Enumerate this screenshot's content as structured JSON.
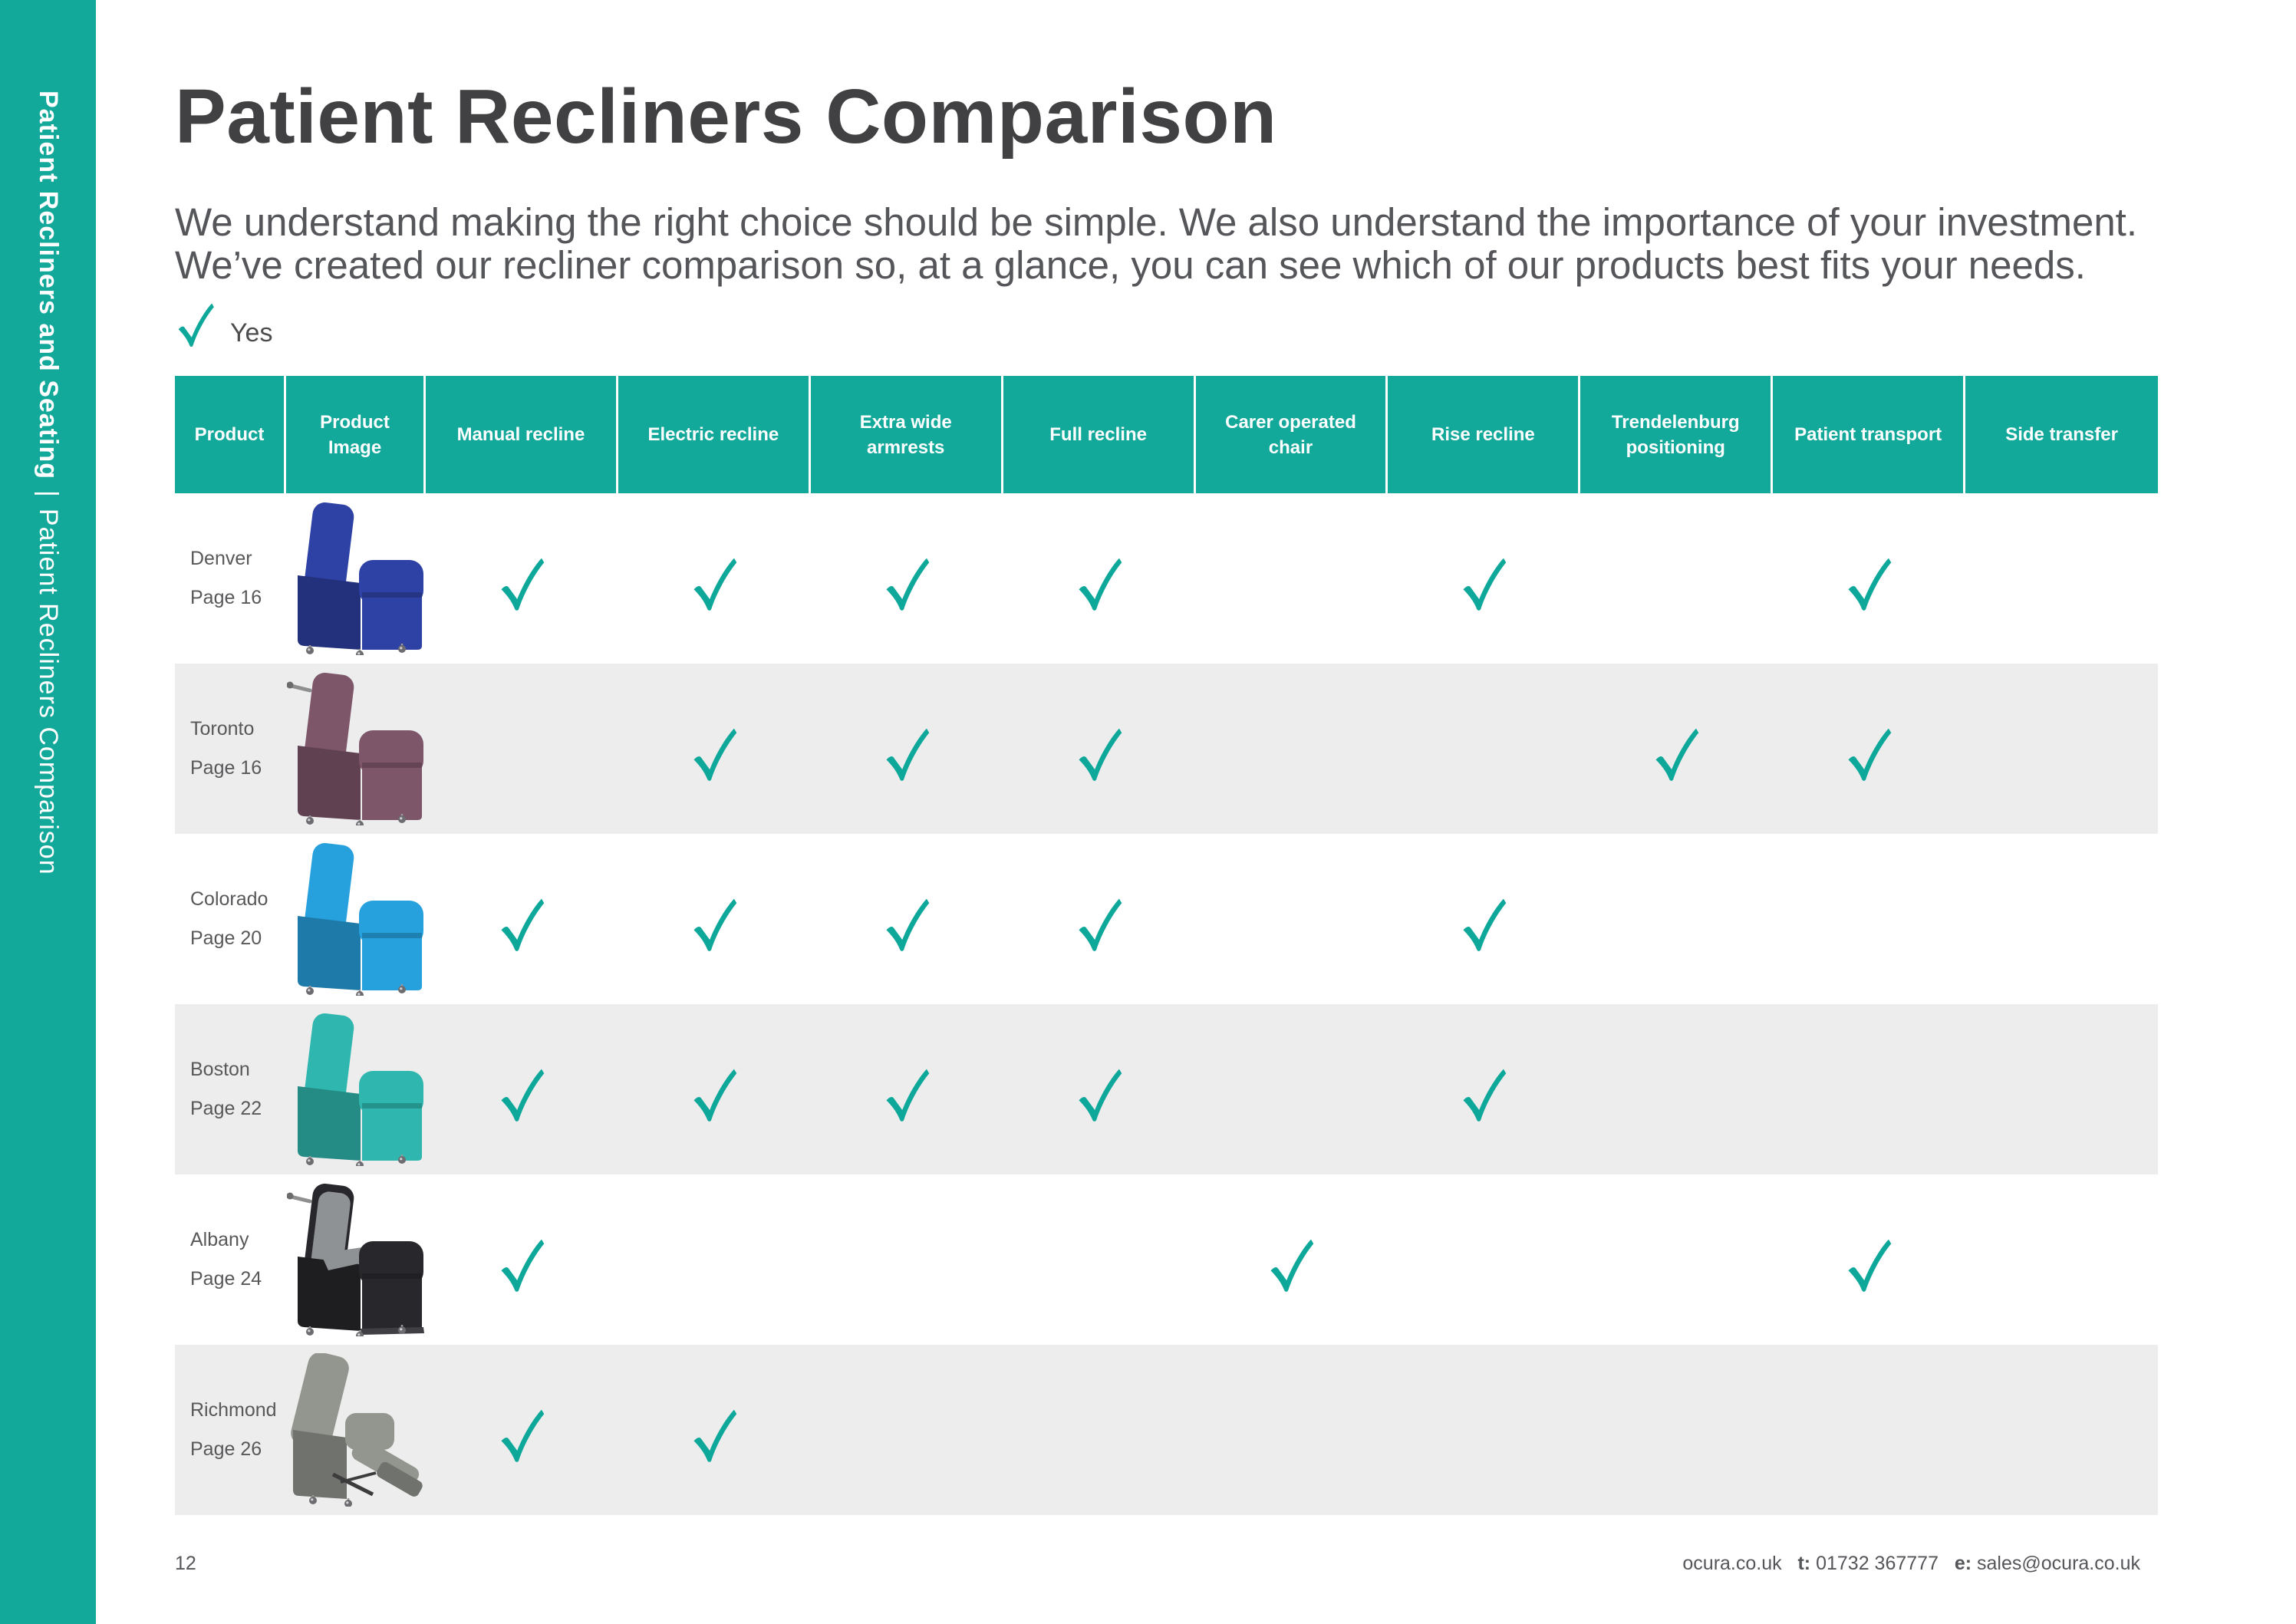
{
  "colors": {
    "teal": "#12a89a",
    "row_alt": "#ededed",
    "title_text": "#414042",
    "body_text": "#55565a",
    "table_text": "#58585a",
    "check": "#0ea89b"
  },
  "sidebar": {
    "bold": "Patient Recliners and Seating",
    "divider": "|",
    "regular": "Patient Recliners Comparison"
  },
  "header": {
    "title": "Patient Recliners Comparison",
    "intro_line1": "We understand making the right choice should be simple. We also understand the importance of your investment.",
    "intro_line2": "We’ve created our recliner comparison so, at a glance, you can see which of our products best fits your needs."
  },
  "legend": {
    "label": "Yes"
  },
  "table": {
    "columns": [
      "Product",
      "Product Image",
      "Manual recline",
      "Electric recline",
      "Extra wide armrests",
      "Full recline",
      "Carer operated chair",
      "Rise recline",
      "Trendelenburg positioning",
      "Patient transport",
      "Side transfer"
    ],
    "rows": [
      {
        "product": "Denver",
        "page": "Page 16",
        "chair": {
          "color": "#2e41a4",
          "style": "upright"
        },
        "features": {
          "Manual recline": true,
          "Electric recline": true,
          "Extra wide armrests": true,
          "Full recline": true,
          "Carer operated chair": false,
          "Rise recline": true,
          "Trendelenburg positioning": false,
          "Patient transport": true,
          "Side transfer": false
        }
      },
      {
        "product": "Toronto",
        "page": "Page 16",
        "chair": {
          "color": "#7e566a",
          "style": "upright",
          "handle": true
        },
        "features": {
          "Manual recline": false,
          "Electric recline": true,
          "Extra wide armrests": true,
          "Full recline": true,
          "Carer operated chair": false,
          "Rise recline": false,
          "Trendelenburg positioning": true,
          "Patient transport": true,
          "Side transfer": false
        }
      },
      {
        "product": "Colorado",
        "page": "Page 20",
        "chair": {
          "color": "#27a0de",
          "style": "upright"
        },
        "features": {
          "Manual recline": true,
          "Electric recline": true,
          "Extra wide armrests": true,
          "Full recline": true,
          "Carer operated chair": false,
          "Rise recline": true,
          "Trendelenburg positioning": false,
          "Patient transport": false,
          "Side transfer": false
        }
      },
      {
        "product": "Boston",
        "page": "Page 22",
        "chair": {
          "color": "#2fb7af",
          "style": "upright"
        },
        "features": {
          "Manual recline": true,
          "Electric recline": true,
          "Extra wide armrests": true,
          "Full recline": true,
          "Carer operated chair": false,
          "Rise recline": true,
          "Trendelenburg positioning": false,
          "Patient transport": false,
          "Side transfer": false
        }
      },
      {
        "product": "Albany",
        "page": "Page 24",
        "chair": {
          "color": "#28282c",
          "style": "upright",
          "cushion": "#8f9295",
          "handle": true,
          "footboard": true
        },
        "features": {
          "Manual recline": true,
          "Electric recline": false,
          "Extra wide armrests": false,
          "Full recline": false,
          "Carer operated chair": true,
          "Rise recline": false,
          "Trendelenburg positioning": false,
          "Patient transport": true,
          "Side transfer": false
        }
      },
      {
        "product": "Richmond",
        "page": "Page 26",
        "chair": {
          "color": "#93968f",
          "style": "reclined"
        },
        "features": {
          "Manual recline": true,
          "Electric recline": true,
          "Extra wide armrests": false,
          "Full recline": false,
          "Carer operated chair": false,
          "Rise recline": false,
          "Trendelenburg positioning": false,
          "Patient transport": false,
          "Side transfer": false
        }
      }
    ]
  },
  "footer": {
    "page_number": "12",
    "website": "ocura.co.uk",
    "phone_label": "t:",
    "phone": "01732 367777",
    "email_label": "e:",
    "email": "sales@ocura.co.uk"
  }
}
